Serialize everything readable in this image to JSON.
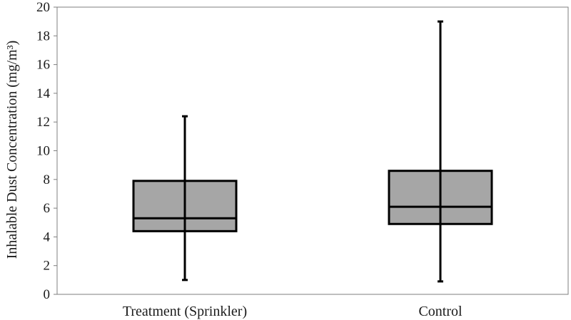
{
  "chart_data": {
    "type": "boxplot",
    "title": "",
    "xlabel": "",
    "ylabel": "Inhalable Dust Concentration (mg/m³)",
    "ylim": [
      0,
      20
    ],
    "yticks": [
      0,
      2,
      4,
      6,
      8,
      10,
      12,
      14,
      16,
      18,
      20
    ],
    "grid": false,
    "legend": "none",
    "box_color": "#a6a6a6",
    "line_color": "#000000",
    "categories": [
      "Treatment (Sprinkler)",
      "Control"
    ],
    "boxes": [
      {
        "category": "Treatment (Sprinkler)",
        "min": 1.0,
        "q1": 4.4,
        "median": 5.3,
        "q3": 7.9,
        "max": 12.4
      },
      {
        "category": "Control",
        "min": 0.9,
        "q1": 4.9,
        "median": 6.1,
        "q3": 8.6,
        "max": 19.0
      }
    ]
  }
}
